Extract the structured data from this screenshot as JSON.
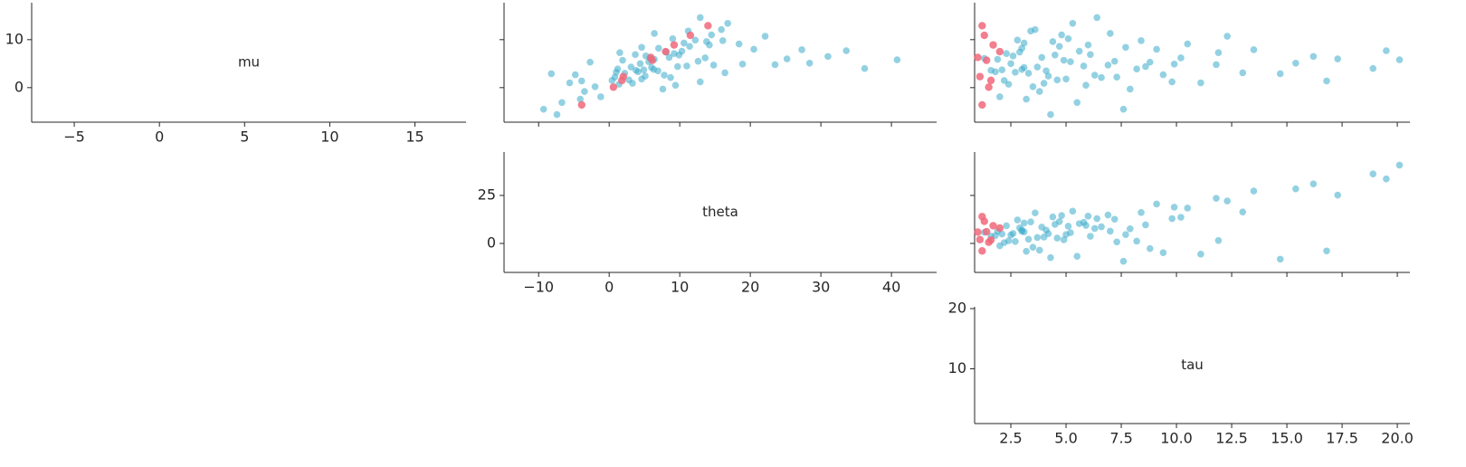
{
  "chart_data": {
    "type": "pair",
    "color": "#3aaccb",
    "divergent_color": "#f0677a",
    "variables": [
      {
        "label": "mu",
        "xlim": [
          -7.5,
          18.0
        ],
        "ylim": [
          -7.2,
          17.7
        ],
        "xticks": [
          {
            "value": -5,
            "label": "−5"
          },
          0,
          5,
          10,
          15
        ],
        "yticks": [
          0,
          10
        ]
      },
      {
        "label": "theta",
        "xlim": [
          -14.9,
          46.4
        ],
        "ylim": [
          -15.1,
          47.6
        ],
        "xticks": [
          {
            "value": -10,
            "label": "−10"
          },
          0,
          10,
          20,
          30,
          40
        ],
        "yticks": [
          0,
          25
        ]
      },
      {
        "label": "tau",
        "xlim": [
          0.86,
          20.57
        ],
        "ylim": [
          0.9,
          20.3
        ],
        "xticks": [
          2.5,
          {
            "value": 5,
            "label": "5.0"
          },
          7.5,
          {
            "value": 10,
            "label": "10.0"
          },
          12.5,
          {
            "value": 15,
            "label": "15.0"
          },
          17.5,
          {
            "value": 20,
            "label": "20.0"
          }
        ],
        "yticks": [
          10,
          20
        ]
      }
    ],
    "samples": [
      [
        4.2,
        6.8,
        1.5,
        8.9,
        -0.8,
        3.3,
        5.5,
        10.2,
        2.7,
        7.4,
        0.9,
        12.1,
        4.8,
        -3.1,
        6.1,
        3.9,
        9.6,
        2.1,
        5.0,
        7.9,
        -1.9,
        4.5,
        11.3,
        3.0,
        6.5,
        1.2,
        8.2,
        5.7,
        -4.5,
        3.6,
        9.1,
        2.4,
        6.9,
        0.2,
        13.4,
        4.0,
        7.1,
        5.3,
        1.8,
        10.7,
        3.2,
        6.3,
        -0.3,
        8.6,
        2.9,
        5.9,
        4.7,
        11.8,
        1.0,
        7.6,
        3.5,
        9.8,
        -2.4,
        5.1,
        6.6,
        2.2,
        8.0,
        4.3,
        14.6,
        0.5,
        5.8,
        3.7,
        7.3,
        1.6,
        9.3,
        6.0,
        2.6,
        -5.6,
        4.9,
        8.4,
        3.1,
        11.0,
        5.4,
        0.7,
        7.7,
        4.4,
        9.9,
        1.4,
        6.2,
        3.8
      ],
      [
        6.0,
        9.9,
        0.4,
        14.2,
        -3.5,
        4.1,
        12.6,
        9.0,
        -4.8,
        8.1,
        3.3,
        15.9,
        23.5,
        -6.7,
        5.8,
        1.2,
        13.8,
        8.7,
        4.4,
        27.3,
        -1.2,
        11.0,
        6.4,
        2.2,
        31.0,
        12.9,
        7.0,
        1.9,
        -9.3,
        3.8,
        18.4,
        5.1,
        3.7,
        -2.0,
        16.8,
        36.2,
        9.2,
        -2.7,
        4.6,
        22.1,
        1.0,
        8.5,
        7.6,
        11.4,
        -8.2,
        6.4,
        14.8,
        11.2,
        -5.6,
        10.3,
        6.9,
        16.1,
        -4.1,
        28.4,
        5.2,
        0.8,
        20.5,
        3.1,
        12.9,
        9.4,
        40.8,
        4.9,
        1.5,
        2.8,
        10.6,
        25.2,
        7.8,
        -7.4,
        18.9,
        4.6,
        16.4,
        14.5,
        5.6,
        1.4,
        33.6,
        9.7,
        12.2,
        -3.9,
        13.6,
        6.3
      ],
      [
        3.1,
        4.5,
        2.2,
        6.0,
        3.8,
        1.8,
        7.2,
        5.1,
        9.4,
        2.9,
        4.0,
        3.6,
        11.8,
        5.5,
        1.3,
        8.2,
        4.4,
        6.6,
        2.5,
        13.5,
        2.0,
        5.8,
        7.0,
        3.3,
        16.2,
        9.8,
        3.0,
        4.9,
        7.6,
        1.6,
        10.5,
        4.2,
        6.1,
        3.5,
        5.3,
        18.9,
        2.3,
        8.8,
        5.0,
        12.3,
        2.7,
        3.9,
        7.9,
        4.7,
        14.7,
        1.9,
        6.9,
        3.4,
        11.1,
        5.6,
        4.1,
        8.4,
        3.2,
        15.4,
        2.6,
        7.3,
        9.1,
        3.7,
        6.4,
        5.9,
        20.1,
        2.1,
        11.9,
        4.6,
        3.1,
        17.3,
        6.3,
        4.3,
        9.9,
        7.7,
        13.0,
        4.8,
        5.2,
        2.4,
        19.5,
        8.6,
        2.8,
        16.8,
        10.2,
        3.0
      ]
    ],
    "divergent": [
      [
        -3.6,
        0.1,
        2.3,
        5.7,
        6.3,
        8.9,
        10.9,
        7.5,
        1.5,
        12.9
      ],
      [
        -3.9,
        0.6,
        2.0,
        6.1,
        5.9,
        9.2,
        11.5,
        8.0,
        1.8,
        14.0
      ],
      [
        1.2,
        1.5,
        1.1,
        1.4,
        1.0,
        1.7,
        1.3,
        2.0,
        1.6,
        1.2
      ]
    ]
  }
}
